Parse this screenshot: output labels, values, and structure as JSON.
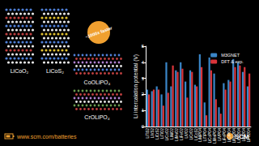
{
  "chart_data": {
    "type": "bar",
    "y_label": "Li intercalation potential (V)",
    "categories": [
      "LiTiS2",
      "LiVS2",
      "LiCrS2",
      "LiTiO2",
      "LiCoO2",
      "LiNiO2",
      "LiMnO2",
      "LiFeO2",
      "LiVO2",
      "LiCrO2",
      "LiCoS2",
      "LiNiPO4",
      "LiTiPO4",
      "LiCoPO4",
      "LiMnPO4",
      "LiVPO4",
      "LiFePO4",
      "LiCrPO4",
      "LiMn2O4",
      "LiCo2O4",
      "LiNi2O4",
      "LiFe2O4"
    ],
    "series": [
      {
        "name": "M3GNET",
        "color": "#3a86c8",
        "values": [
          2.3,
          2.2,
          2.5,
          2.0,
          4.0,
          2.5,
          3.5,
          4.0,
          2.8,
          3.5,
          2.6,
          4.5,
          1.5,
          4.3,
          3.3,
          1.2,
          2.7,
          2.9,
          4.2,
          4.0,
          3.4,
          2.5
        ]
      },
      {
        "name": "DFT & exp.",
        "color": "#d9343a",
        "values": [
          2.0,
          2.3,
          2.3,
          1.3,
          2.1,
          3.8,
          3.4,
          3.6,
          1.8,
          3.4,
          2.5,
          3.7,
          0.7,
          3.5,
          1.7,
          0.8,
          2.3,
          2.8,
          3.7,
          3.8,
          3.7,
          3.3
        ]
      }
    ],
    "ylim": [
      0,
      5
    ],
    "yticks": [
      0,
      1,
      2,
      3,
      4,
      5
    ],
    "grid": false,
    "legend": "upper right"
  },
  "figure": {
    "structures": [
      "LiCoO₂",
      "LiCoS₂",
      "CoOLiPO₄",
      "CrOLiPO₄"
    ],
    "callout": "~1000x faster",
    "footer_url": "www.scm.com/batteries",
    "logo": "SCM"
  }
}
